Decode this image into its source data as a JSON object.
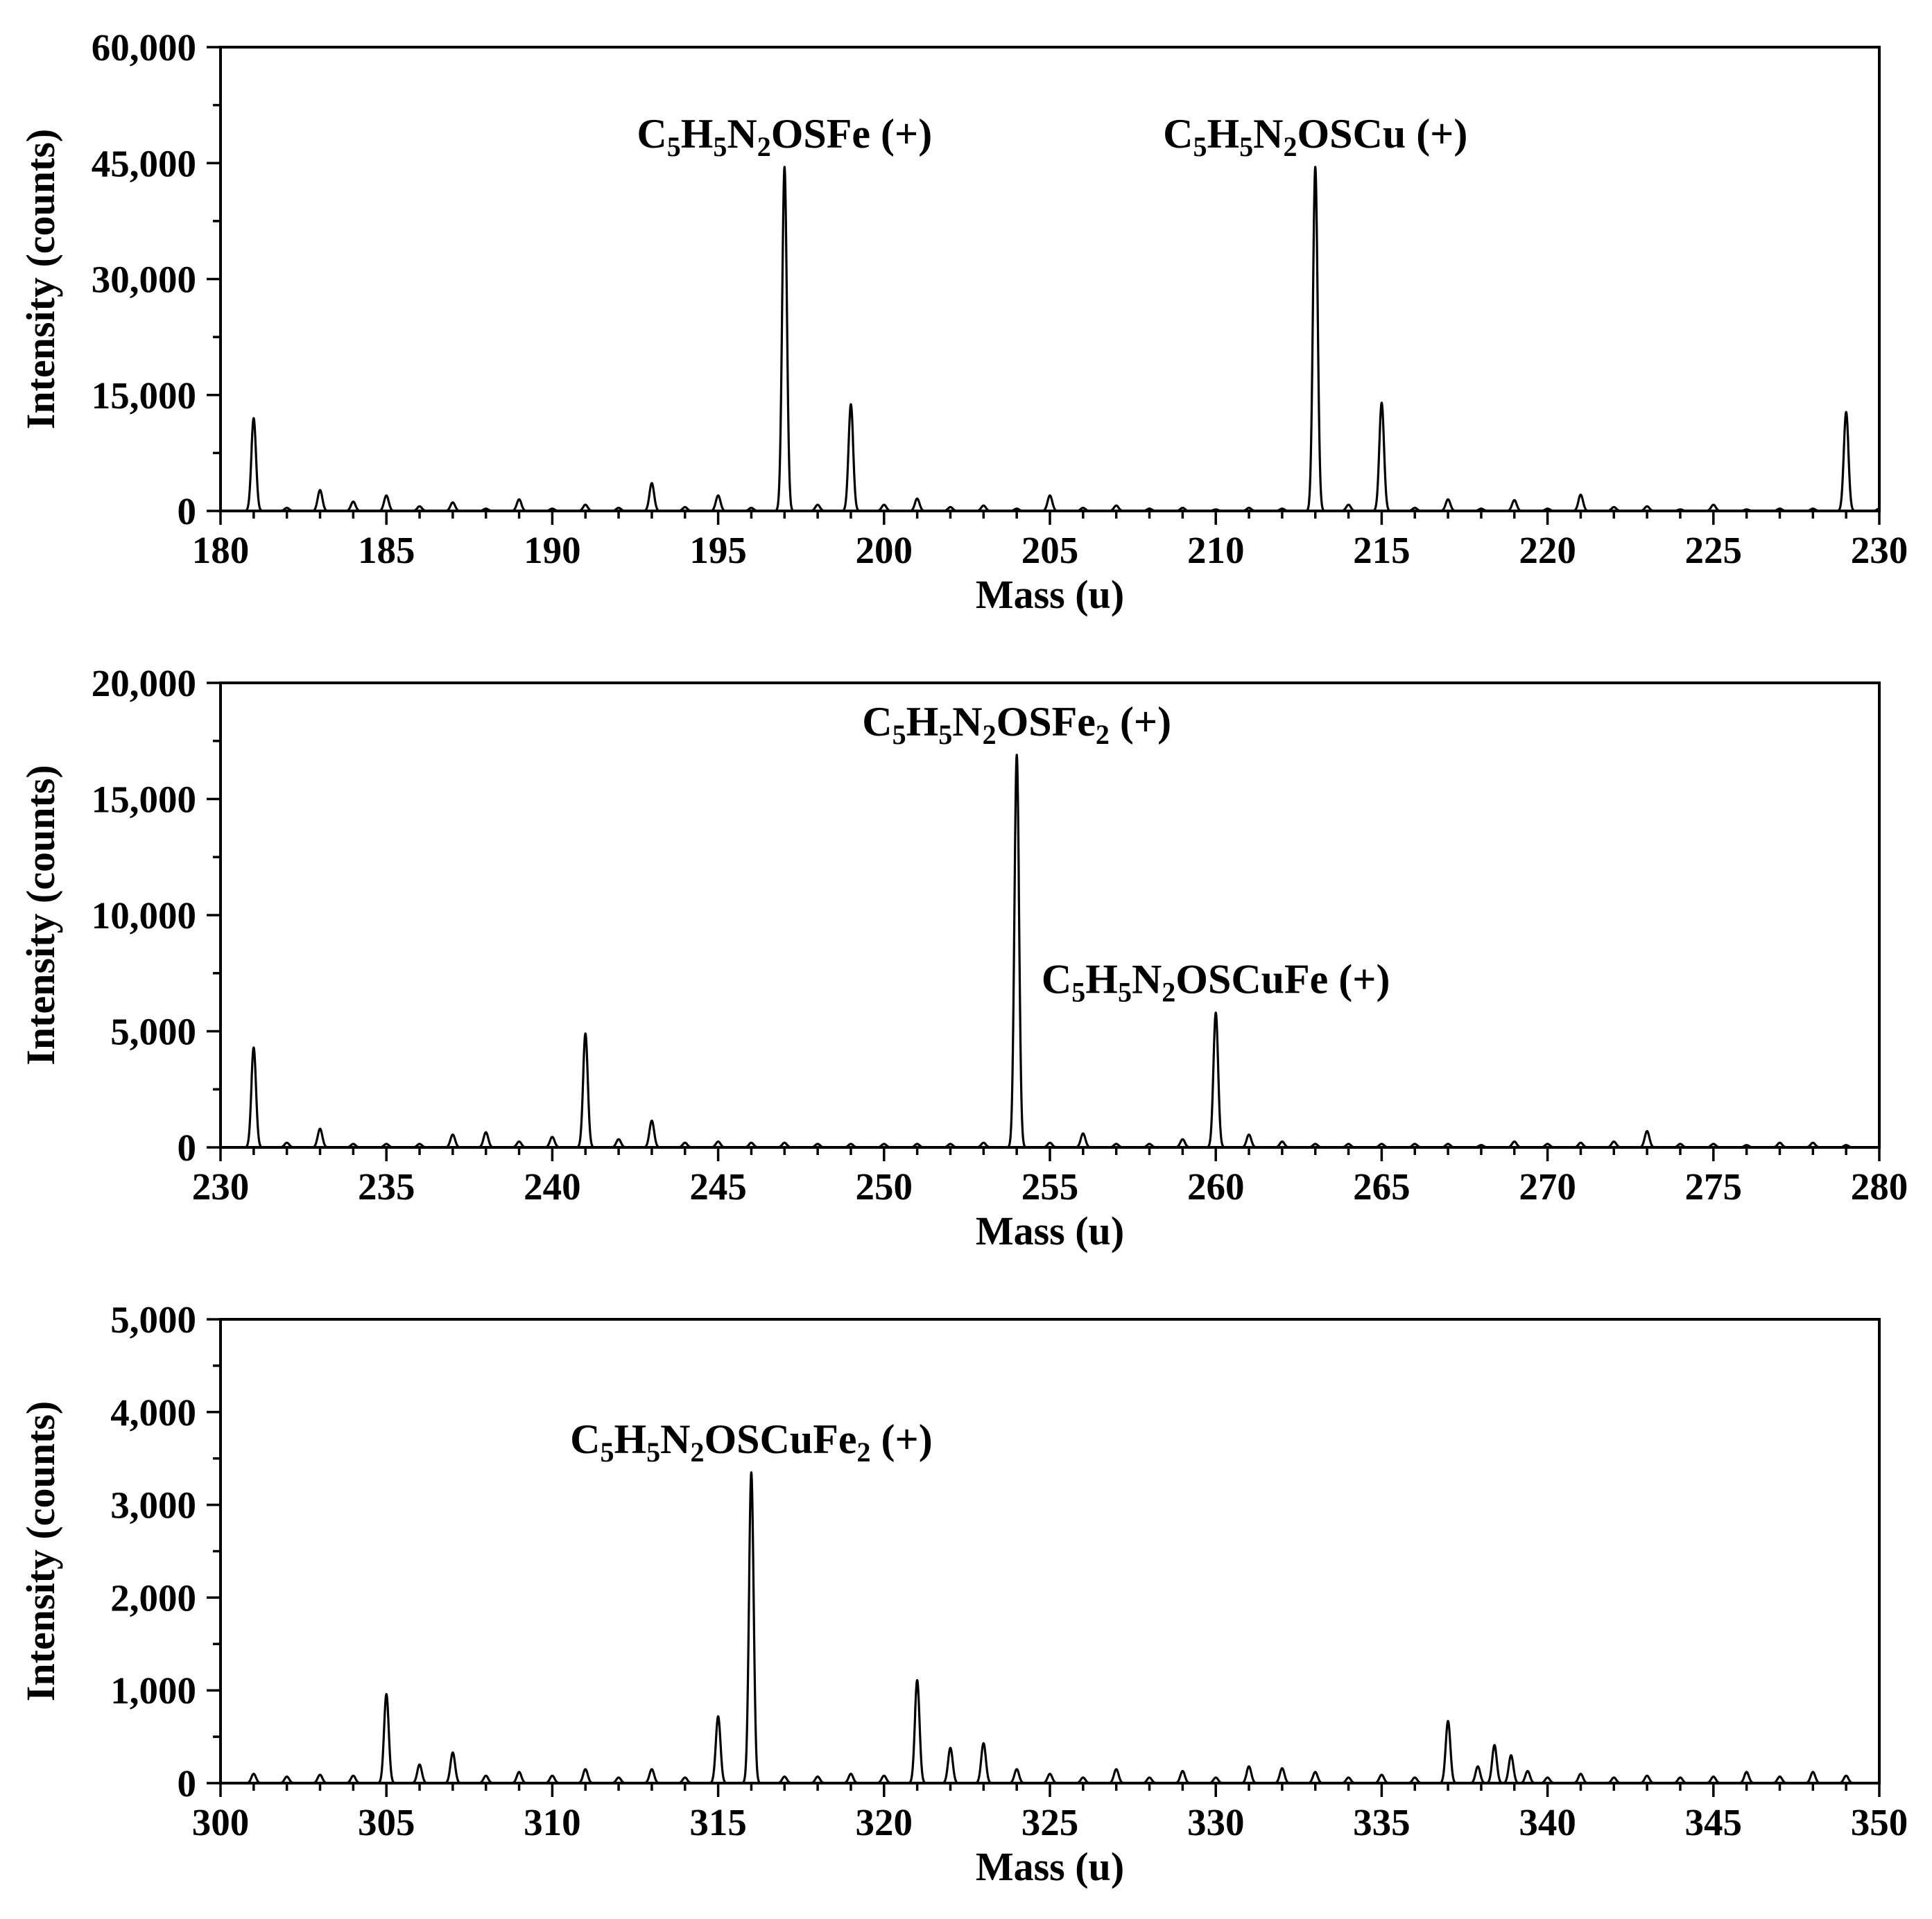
{
  "chart_data": [
    {
      "type": "line",
      "xlabel": "Mass (u)",
      "ylabel": "Intensity (counts)",
      "xlim": [
        180,
        230
      ],
      "ylim": [
        0,
        60000
      ],
      "x_ticks": [
        180,
        185,
        190,
        195,
        200,
        205,
        210,
        215,
        220,
        225,
        230
      ],
      "x_tick_labels": [
        "180",
        "185",
        "190",
        "195",
        "200",
        "205",
        "210",
        "215",
        "220",
        "225",
        "230"
      ],
      "y_ticks": [
        0,
        15000,
        30000,
        45000,
        60000
      ],
      "y_tick_labels": [
        "0",
        "15,000",
        "30,000",
        "45,000",
        "60,000"
      ],
      "grid": false,
      "series": [
        {
          "peaks": [
            [
              181,
              12000
            ],
            [
              182,
              400
            ],
            [
              183,
              2700
            ],
            [
              184,
              1200
            ],
            [
              185,
              2000
            ],
            [
              186,
              600
            ],
            [
              187,
              1100
            ],
            [
              188,
              300
            ],
            [
              189,
              1500
            ],
            [
              190,
              300
            ],
            [
              191,
              800
            ],
            [
              192,
              400
            ],
            [
              193,
              3600
            ],
            [
              194,
              500
            ],
            [
              195,
              2000
            ],
            [
              196,
              400
            ],
            [
              197,
              44500
            ],
            [
              198,
              800
            ],
            [
              199,
              13800
            ],
            [
              200,
              800
            ],
            [
              201,
              1600
            ],
            [
              202,
              500
            ],
            [
              203,
              700
            ],
            [
              204,
              300
            ],
            [
              205,
              2000
            ],
            [
              206,
              400
            ],
            [
              207,
              700
            ],
            [
              208,
              300
            ],
            [
              209,
              400
            ],
            [
              210,
              200
            ],
            [
              211,
              400
            ],
            [
              212,
              300
            ],
            [
              213,
              44500
            ],
            [
              214,
              800
            ],
            [
              215,
              14000
            ],
            [
              216,
              400
            ],
            [
              217,
              1500
            ],
            [
              218,
              300
            ],
            [
              219,
              1400
            ],
            [
              220,
              300
            ],
            [
              221,
              2100
            ],
            [
              222,
              500
            ],
            [
              223,
              600
            ],
            [
              224,
              200
            ],
            [
              225,
              800
            ],
            [
              226,
              200
            ],
            [
              227,
              300
            ],
            [
              228,
              300
            ],
            [
              229,
              12800
            ],
            [
              230,
              300
            ]
          ]
        }
      ],
      "annotations": [
        {
          "mass": 197,
          "intensity": 44500,
          "parts": [
            [
              "C",
              ""
            ],
            [
              "5",
              "sub"
            ],
            [
              "H",
              ""
            ],
            [
              "5",
              "sub"
            ],
            [
              "N",
              ""
            ],
            [
              "2",
              "sub"
            ],
            [
              "OSFe (+)",
              ""
            ]
          ]
        },
        {
          "mass": 213,
          "intensity": 44500,
          "parts": [
            [
              "C",
              ""
            ],
            [
              "5",
              "sub"
            ],
            [
              "H",
              ""
            ],
            [
              "5",
              "sub"
            ],
            [
              "N",
              ""
            ],
            [
              "2",
              "sub"
            ],
            [
              "OSCu (+)",
              ""
            ]
          ]
        }
      ]
    },
    {
      "type": "line",
      "xlabel": "Mass (u)",
      "ylabel": "Intensity (counts)",
      "xlim": [
        230,
        280
      ],
      "ylim": [
        0,
        20000
      ],
      "x_ticks": [
        230,
        235,
        240,
        245,
        250,
        255,
        260,
        265,
        270,
        275,
        280
      ],
      "x_tick_labels": [
        "230",
        "235",
        "240",
        "245",
        "250",
        "255",
        "260",
        "265",
        "270",
        "275",
        "280"
      ],
      "y_ticks": [
        0,
        5000,
        10000,
        15000,
        20000
      ],
      "y_tick_labels": [
        "0",
        "5,000",
        "10,000",
        "15,000",
        "20,000"
      ],
      "grid": false,
      "series": [
        {
          "peaks": [
            [
              231,
              4300
            ],
            [
              232,
              200
            ],
            [
              233,
              800
            ],
            [
              234,
              150
            ],
            [
              235,
              150
            ],
            [
              236,
              150
            ],
            [
              237,
              550
            ],
            [
              238,
              650
            ],
            [
              239,
              250
            ],
            [
              240,
              450
            ],
            [
              241,
              4900
            ],
            [
              242,
              350
            ],
            [
              243,
              1150
            ],
            [
              244,
              200
            ],
            [
              245,
              250
            ],
            [
              246,
              200
            ],
            [
              247,
              200
            ],
            [
              248,
              150
            ],
            [
              249,
              150
            ],
            [
              250,
              150
            ],
            [
              251,
              150
            ],
            [
              252,
              150
            ],
            [
              253,
              200
            ],
            [
              254,
              16900
            ],
            [
              255,
              200
            ],
            [
              256,
              600
            ],
            [
              257,
              150
            ],
            [
              258,
              150
            ],
            [
              259,
              350
            ],
            [
              260,
              5800
            ],
            [
              261,
              550
            ],
            [
              262,
              250
            ],
            [
              263,
              150
            ],
            [
              264,
              150
            ],
            [
              265,
              150
            ],
            [
              266,
              150
            ],
            [
              267,
              150
            ],
            [
              268,
              100
            ],
            [
              269,
              250
            ],
            [
              270,
              150
            ],
            [
              271,
              200
            ],
            [
              272,
              250
            ],
            [
              273,
              700
            ],
            [
              274,
              150
            ],
            [
              275,
              150
            ],
            [
              276,
              100
            ],
            [
              277,
              200
            ],
            [
              278,
              200
            ],
            [
              279,
              100
            ]
          ]
        }
      ],
      "annotations": [
        {
          "mass": 254,
          "intensity": 16900,
          "parts": [
            [
              "C",
              ""
            ],
            [
              "5",
              "sub"
            ],
            [
              "H",
              ""
            ],
            [
              "5",
              "sub"
            ],
            [
              "N",
              ""
            ],
            [
              "2",
              "sub"
            ],
            [
              "OSFe",
              ""
            ],
            [
              "2",
              "sub"
            ],
            [
              " (+)",
              ""
            ]
          ]
        },
        {
          "mass": 260,
          "intensity": 5800,
          "parts": [
            [
              "C",
              ""
            ],
            [
              "5",
              "sub"
            ],
            [
              "H",
              ""
            ],
            [
              "5",
              "sub"
            ],
            [
              "N",
              ""
            ],
            [
              "2",
              "sub"
            ],
            [
              "OSCuFe (+)",
              ""
            ]
          ]
        }
      ]
    },
    {
      "type": "line",
      "xlabel": "Mass (u)",
      "ylabel": "Intensity (counts)",
      "xlim": [
        300,
        350
      ],
      "ylim": [
        0,
        5000
      ],
      "x_ticks": [
        300,
        305,
        310,
        315,
        320,
        325,
        330,
        335,
        340,
        345,
        350
      ],
      "x_tick_labels": [
        "300",
        "305",
        "310",
        "315",
        "320",
        "325",
        "330",
        "335",
        "340",
        "345",
        "350"
      ],
      "y_ticks": [
        0,
        1000,
        2000,
        3000,
        4000,
        5000
      ],
      "y_tick_labels": [
        "0",
        "1,000",
        "2,000",
        "3,000",
        "4,000",
        "5,000"
      ],
      "grid": false,
      "series": [
        {
          "peaks": [
            [
              301,
              100
            ],
            [
              302,
              70
            ],
            [
              303,
              90
            ],
            [
              304,
              80
            ],
            [
              305,
              960
            ],
            [
              306,
              200
            ],
            [
              307,
              330
            ],
            [
              308,
              80
            ],
            [
              309,
              120
            ],
            [
              310,
              80
            ],
            [
              311,
              150
            ],
            [
              312,
              60
            ],
            [
              313,
              150
            ],
            [
              314,
              60
            ],
            [
              315,
              720
            ],
            [
              316,
              3350
            ],
            [
              317,
              70
            ],
            [
              318,
              70
            ],
            [
              319,
              100
            ],
            [
              320,
              80
            ],
            [
              321,
              1110
            ],
            [
              322,
              380
            ],
            [
              323,
              430
            ],
            [
              324,
              150
            ],
            [
              325,
              100
            ],
            [
              326,
              60
            ],
            [
              327,
              150
            ],
            [
              328,
              60
            ],
            [
              329,
              130
            ],
            [
              330,
              60
            ],
            [
              331,
              180
            ],
            [
              332,
              160
            ],
            [
              333,
              120
            ],
            [
              334,
              60
            ],
            [
              335,
              90
            ],
            [
              336,
              60
            ],
            [
              337,
              670
            ],
            [
              337.9,
              180
            ],
            [
              338.4,
              410
            ],
            [
              338.9,
              300
            ],
            [
              339.4,
              130
            ],
            [
              340,
              60
            ],
            [
              341,
              100
            ],
            [
              342,
              60
            ],
            [
              343,
              80
            ],
            [
              344,
              60
            ],
            [
              345,
              70
            ],
            [
              346,
              120
            ],
            [
              347,
              70
            ],
            [
              348,
              120
            ],
            [
              349,
              80
            ]
          ]
        }
      ],
      "annotations": [
        {
          "mass": 316,
          "intensity": 3350,
          "parts": [
            [
              "C",
              ""
            ],
            [
              "5",
              "sub"
            ],
            [
              "H",
              ""
            ],
            [
              "5",
              "sub"
            ],
            [
              "N",
              ""
            ],
            [
              "2",
              "sub"
            ],
            [
              "OSCuFe",
              ""
            ],
            [
              "2",
              "sub"
            ],
            [
              " (+)",
              ""
            ]
          ]
        }
      ]
    }
  ]
}
